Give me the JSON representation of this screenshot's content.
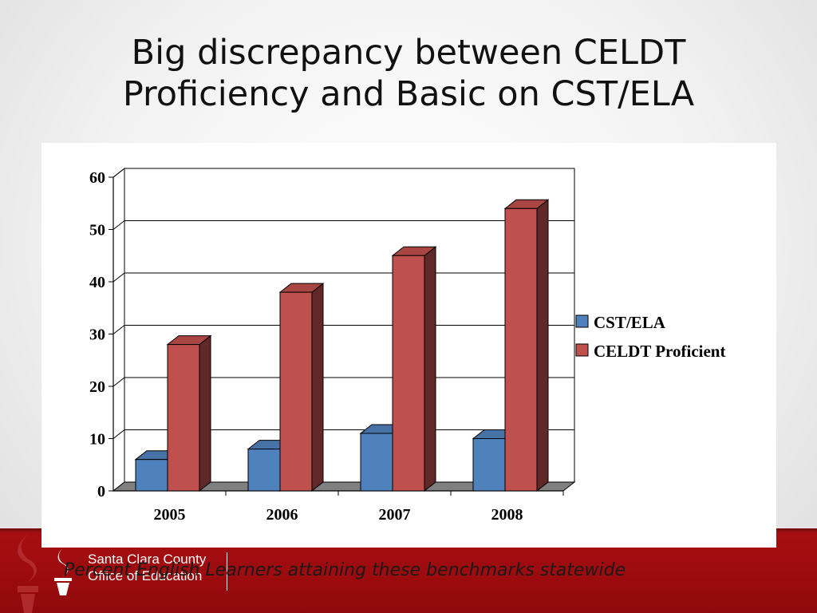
{
  "slide": {
    "title_line1": "Big discrepancy between CELDT",
    "title_line2": "Proficiency and Basic on CST/ELA",
    "caption": "Percent English Learners attaining these benchmarks statewide",
    "logo": {
      "line1": "Santa Clara County",
      "line2": "Office of Education"
    }
  },
  "colors": {
    "footer": "#9d0c10",
    "cst": "#4f81bd",
    "celdt": "#c0504d"
  },
  "chart_data": {
    "type": "bar",
    "title": "",
    "xlabel": "",
    "ylabel": "",
    "categories": [
      "2005",
      "2006",
      "2007",
      "2008"
    ],
    "series": [
      {
        "name": "CST/ELA",
        "values": [
          6,
          8,
          11,
          10
        ],
        "color": "#4f81bd"
      },
      {
        "name": "CELDT Proficient",
        "values": [
          28,
          38,
          45,
          54
        ],
        "color": "#c0504d"
      }
    ],
    "ylim": [
      0,
      60
    ],
    "yticks": [
      "0",
      "10",
      "20",
      "30",
      "40",
      "50",
      "60"
    ],
    "grid": true,
    "three_d": true,
    "legend": "right"
  }
}
